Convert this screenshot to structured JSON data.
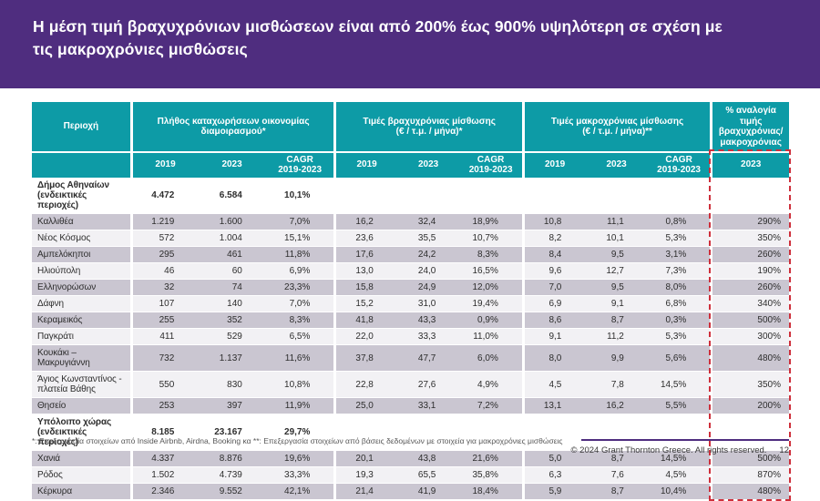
{
  "title": {
    "line1": "Η μέση τιμή βραχυχρόνιων μισθώσεων είναι από 200% έως 900% υψηλότερη σε σχέση με",
    "line2": "τις μακροχρόνιες μισθώσεις"
  },
  "colors": {
    "brand_purple": "#4F2D7F",
    "table_teal": "#0D9BA6",
    "stripe_dark": "#CAC6D1",
    "stripe_light": "#F2F1F4",
    "highlight_red": "#CE2F3B"
  },
  "table": {
    "region_header": "Περιοχή",
    "groups": [
      {
        "label": "Πλήθος καταχωρήσεων οικονομίας\nδιαμοιρασμού*"
      },
      {
        "label": "Τιμές βραχυχρόνιας μίσθωσης\n(€ / τ.μ. / μήνα)*"
      },
      {
        "label": "Τιμές μακροχρόνιας μίσθωσης\n(€ / τ.μ. / μήνα)**"
      },
      {
        "label": "% αναλογία τιμής\nβραχυχρόνιας/\nμακροχρόνιας"
      }
    ],
    "subheaders": [
      "2019",
      "2023",
      "CAGR\n2019-2023",
      "2019",
      "2023",
      "CAGR\n2019-2023",
      "2019",
      "2023",
      "CAGR\n2019-2023",
      "2023"
    ],
    "rows": [
      {
        "style": "section",
        "region": "Δήμος Αθηναίων\n(ενδεικτικές περιοχές)",
        "values": [
          "4.472",
          "6.584",
          "10,1%",
          "",
          "",
          "",
          "",
          "",
          "",
          ""
        ]
      },
      {
        "style": "dark",
        "region": "Καλλιθέα",
        "values": [
          "1.219",
          "1.600",
          "7,0%",
          "16,2",
          "32,4",
          "18,9%",
          "10,8",
          "11,1",
          "0,8%",
          "290%"
        ]
      },
      {
        "style": "light",
        "region": "Νέος Κόσμος",
        "values": [
          "572",
          "1.004",
          "15,1%",
          "23,6",
          "35,5",
          "10,7%",
          "8,2",
          "10,1",
          "5,3%",
          "350%"
        ]
      },
      {
        "style": "dark",
        "region": "Αμπελόκηποι",
        "values": [
          "295",
          "461",
          "11,8%",
          "17,6",
          "24,2",
          "8,3%",
          "8,4",
          "9,5",
          "3,1%",
          "260%"
        ]
      },
      {
        "style": "light",
        "region": "Ηλιούπολη",
        "values": [
          "46",
          "60",
          "6,9%",
          "13,0",
          "24,0",
          "16,5%",
          "9,6",
          "12,7",
          "7,3%",
          "190%"
        ]
      },
      {
        "style": "dark",
        "region": "Ελληνορώσων",
        "values": [
          "32",
          "74",
          "23,3%",
          "15,8",
          "24,9",
          "12,0%",
          "7,0",
          "9,5",
          "8,0%",
          "260%"
        ]
      },
      {
        "style": "light",
        "region": "Δάφνη",
        "values": [
          "107",
          "140",
          "7,0%",
          "15,2",
          "31,0",
          "19,4%",
          "6,9",
          "9,1",
          "6,8%",
          "340%"
        ]
      },
      {
        "style": "dark",
        "region": "Κεραμεικός",
        "values": [
          "255",
          "352",
          "8,3%",
          "41,8",
          "43,3",
          "0,9%",
          "8,6",
          "8,7",
          "0,3%",
          "500%"
        ]
      },
      {
        "style": "light",
        "region": "Παγκράτι",
        "values": [
          "411",
          "529",
          "6,5%",
          "22,0",
          "33,3",
          "11,0%",
          "9,1",
          "11,2",
          "5,3%",
          "300%"
        ]
      },
      {
        "style": "dark",
        "region": "Κουκάκι – Μακρυγιάννη",
        "values": [
          "732",
          "1.137",
          "11,6%",
          "37,8",
          "47,7",
          "6,0%",
          "8,0",
          "9,9",
          "5,6%",
          "480%"
        ]
      },
      {
        "style": "light",
        "region": "Άγιος Κωνσταντίνος -\nπλατεία Βάθης",
        "values": [
          "550",
          "830",
          "10,8%",
          "22,8",
          "27,6",
          "4,9%",
          "4,5",
          "7,8",
          "14,5%",
          "350%"
        ]
      },
      {
        "style": "dark",
        "region": "Θησείο",
        "values": [
          "253",
          "397",
          "11,9%",
          "25,0",
          "33,1",
          "7,2%",
          "13,1",
          "16,2",
          "5,5%",
          "200%"
        ]
      },
      {
        "style": "section",
        "region": "Υπόλοιπο χώρας\n(ενδεικτικές περιοχές)",
        "values": [
          "8.185",
          "23.167",
          "29,7%",
          "",
          "",
          "",
          "",
          "",
          "",
          ""
        ]
      },
      {
        "style": "dark",
        "region": "Χανιά",
        "values": [
          "4.337",
          "8.876",
          "19,6%",
          "20,1",
          "43,8",
          "21,6%",
          "5,0",
          "8,7",
          "14,5%",
          "500%"
        ]
      },
      {
        "style": "light",
        "region": "Ρόδος",
        "values": [
          "1.502",
          "4.739",
          "33,3%",
          "19,3",
          "65,5",
          "35,8%",
          "6,3",
          "7,6",
          "4,5%",
          "870%"
        ]
      },
      {
        "style": "dark",
        "region": "Κέρκυρα",
        "values": [
          "2.346",
          "9.552",
          "42,1%",
          "21,4",
          "41,9",
          "18,4%",
          "5,9",
          "8,7",
          "10,4%",
          "480%"
        ]
      }
    ]
  },
  "footnote": "*: Επεξεργασία στοιχείων από Inside Airbnb, Airdna, Booking κα **: Επεξεργασία στοιχείων από βάσεις δεδομένων με στοιχεία για μακροχρόνιες μισθώσεις",
  "footer": {
    "copyright": "© 2024 Grant Thornton Greece. All rights reserved.",
    "page": "12"
  }
}
